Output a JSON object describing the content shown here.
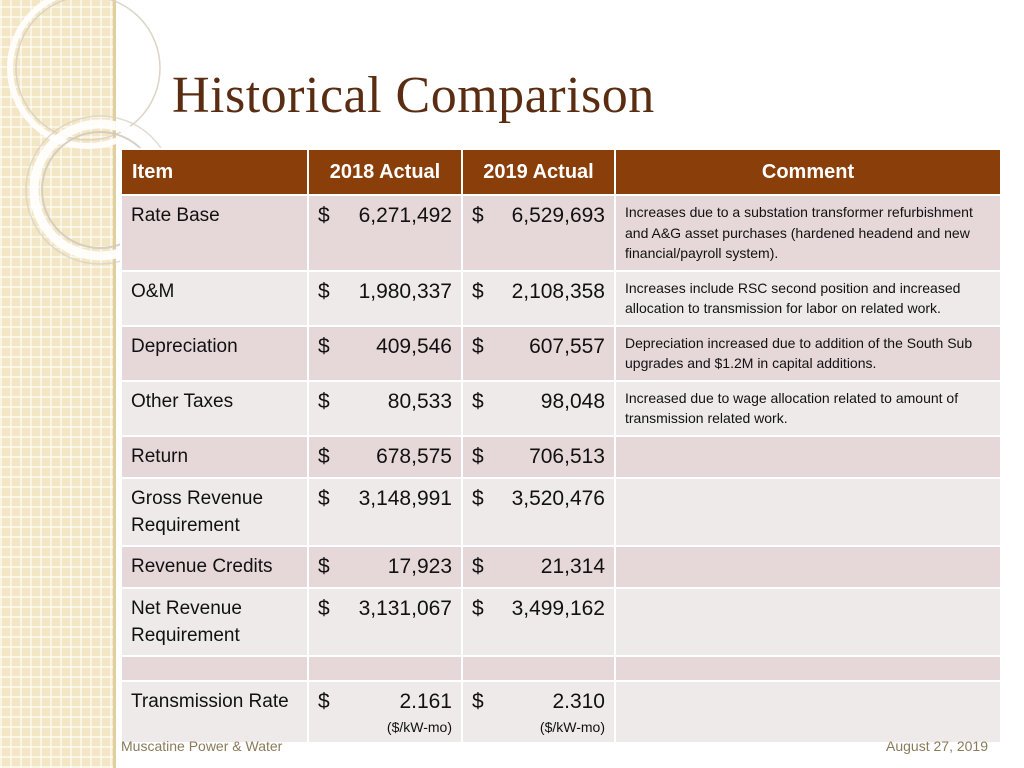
{
  "slide": {
    "title": "Historical Comparison",
    "footer_left": "Muscatine Power & Water",
    "footer_right": "August 27, 2019"
  },
  "table": {
    "headers": {
      "item": "Item",
      "actual_2018": "2018 Actual",
      "actual_2019": "2019 Actual",
      "comment": "Comment"
    },
    "currency_symbol": "$",
    "rows": [
      {
        "item": "Rate Base",
        "v2018": "6,271,492",
        "v2019": "6,529,693",
        "comment": "Increases due to a substation transformer refurbishment and A&G asset purchases (hardened headend and new financial/payroll system)."
      },
      {
        "item": "O&M",
        "v2018": "1,980,337",
        "v2019": "2,108,358",
        "comment": "Increases include RSC second position and increased allocation to transmission for labor on related work."
      },
      {
        "item": "Depreciation",
        "v2018": "409,546",
        "v2019": "607,557",
        "comment": "Depreciation increased due to addition of the South Sub upgrades and $1.2M in capital additions."
      },
      {
        "item": "Other Taxes",
        "v2018": "80,533",
        "v2019": "98,048",
        "comment": "Increased due to wage allocation related to amount of transmission related work."
      },
      {
        "item": "Return",
        "v2018": "678,575",
        "v2019": "706,513",
        "comment": ""
      },
      {
        "item": "Gross Revenue Requirement",
        "v2018": "3,148,991",
        "v2019": "3,520,476",
        "comment": ""
      },
      {
        "item": "Revenue Credits",
        "v2018": "17,923",
        "v2019": "21,314",
        "comment": ""
      },
      {
        "item": "Net Revenue Requirement",
        "v2018": "3,131,067",
        "v2019": "3,499,162",
        "comment": ""
      },
      {
        "item": "Transmission Rate",
        "v2018": "2.161",
        "v2019": "2.310",
        "unit": "($/kW-mo)",
        "comment": ""
      }
    ]
  }
}
